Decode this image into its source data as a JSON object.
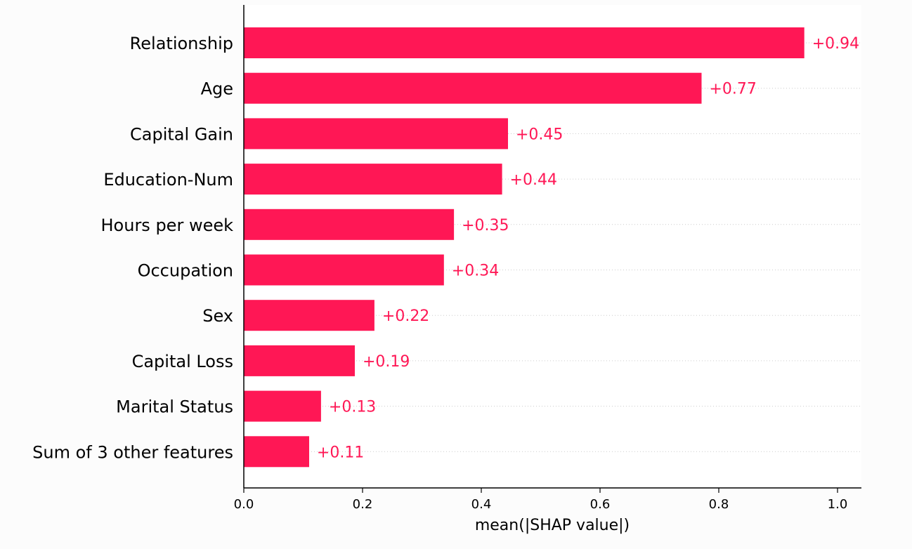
{
  "chart_data": {
    "type": "bar",
    "orientation": "horizontal",
    "title": "",
    "xlabel": "mean(|SHAP value|)",
    "ylabel": "",
    "xlim": [
      0,
      1.04
    ],
    "xticks": [
      "0.0",
      "0.2",
      "0.4",
      "0.6",
      "0.8",
      "1.0"
    ],
    "xtick_values": [
      0,
      0.2,
      0.4,
      0.6,
      0.8,
      1.0
    ],
    "bar_color": "#ff1755",
    "grid": "dotted horizontal guide lines",
    "categories": [
      "Relationship",
      "Age",
      "Capital Gain",
      "Education-Num",
      "Hours per week",
      "Occupation",
      "Sex",
      "Capital Loss",
      "Marital Status",
      "Sum of 3 other features"
    ],
    "values": [
      0.944,
      0.771,
      0.445,
      0.435,
      0.354,
      0.337,
      0.22,
      0.187,
      0.13,
      0.11
    ],
    "value_labels": [
      "+0.94",
      "+0.77",
      "+0.45",
      "+0.44",
      "+0.35",
      "+0.34",
      "+0.22",
      "+0.19",
      "+0.13",
      "+0.11"
    ]
  }
}
